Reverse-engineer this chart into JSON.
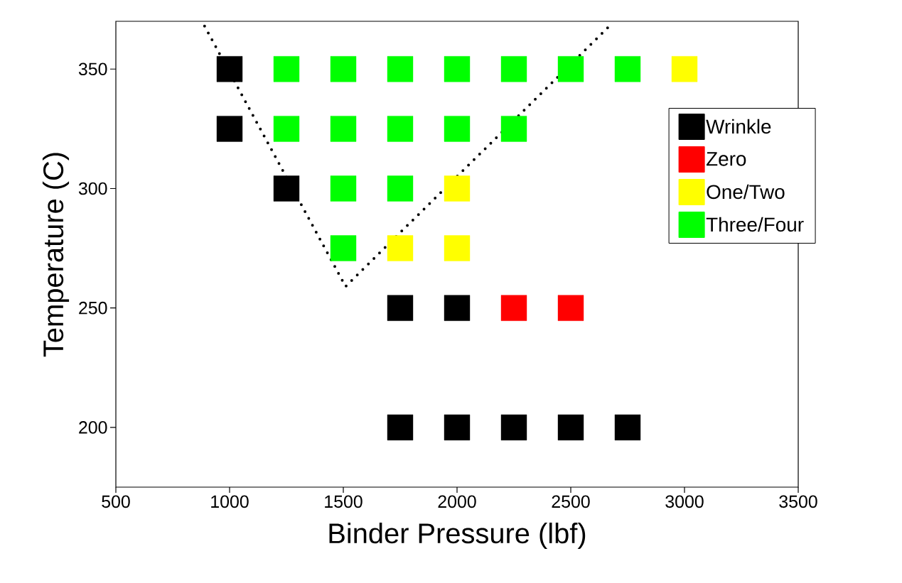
{
  "chart_data": {
    "type": "scatter",
    "xlabel": "Binder Pressure (lbf)",
    "ylabel": "Temperature (C)",
    "xlim": [
      500,
      3500
    ],
    "ylim": [
      175,
      370
    ],
    "xticks": [
      500,
      1000,
      1500,
      2000,
      2500,
      3000,
      3500
    ],
    "yticks": [
      200,
      250,
      300,
      350
    ],
    "marker": "square",
    "legend": "right",
    "grid": false,
    "series": [
      {
        "name": "Wrinkle",
        "color": "#000000",
        "x": [
          1000,
          1000,
          1250,
          1750,
          2000,
          1750,
          2000,
          2250,
          2500,
          2750
        ],
        "values": [
          350,
          325,
          300,
          250,
          250,
          200,
          200,
          200,
          200,
          200
        ]
      },
      {
        "name": "Zero",
        "color": "#ff0000",
        "x": [
          2250,
          2500
        ],
        "values": [
          250,
          250
        ]
      },
      {
        "name": "One/Two",
        "color": "#ffff00",
        "x": [
          3000,
          2000,
          1750,
          2000
        ],
        "values": [
          350,
          300,
          275,
          275
        ]
      },
      {
        "name": "Three/Four",
        "color": "#00ff00",
        "x": [
          1250,
          1500,
          1750,
          2000,
          2250,
          2500,
          2750,
          1250,
          1500,
          1750,
          2000,
          2250,
          1500,
          1750,
          1500
        ],
        "values": [
          350,
          350,
          350,
          350,
          350,
          350,
          350,
          325,
          325,
          325,
          325,
          325,
          300,
          300,
          275
        ]
      },
      {
        "type": "line",
        "color": "#000000",
        "line_style": "dotted",
        "marker": "none",
        "x": [
          890,
          1510,
          2670
        ],
        "values": [
          368,
          259,
          368
        ]
      }
    ]
  }
}
